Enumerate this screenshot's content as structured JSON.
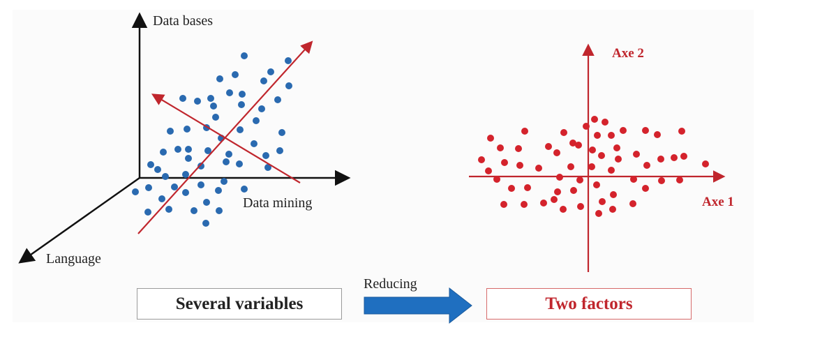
{
  "left_plot": {
    "axis_labels": {
      "vertical": "Data bases",
      "horizontal": "Data mining",
      "depth": "Language"
    },
    "point_color": "#2a6ab0",
    "direction_color": "#c0262d"
  },
  "right_plot": {
    "axis_labels": {
      "vertical": "Axe 2",
      "horizontal": "Axe 1"
    },
    "point_color": "#d4232c"
  },
  "flow": {
    "source_label": "Several variables",
    "arrow_label": "Reducing",
    "target_label": "Two factors",
    "arrow_color": "#1f6fc0",
    "target_color": "#d4232c"
  }
}
